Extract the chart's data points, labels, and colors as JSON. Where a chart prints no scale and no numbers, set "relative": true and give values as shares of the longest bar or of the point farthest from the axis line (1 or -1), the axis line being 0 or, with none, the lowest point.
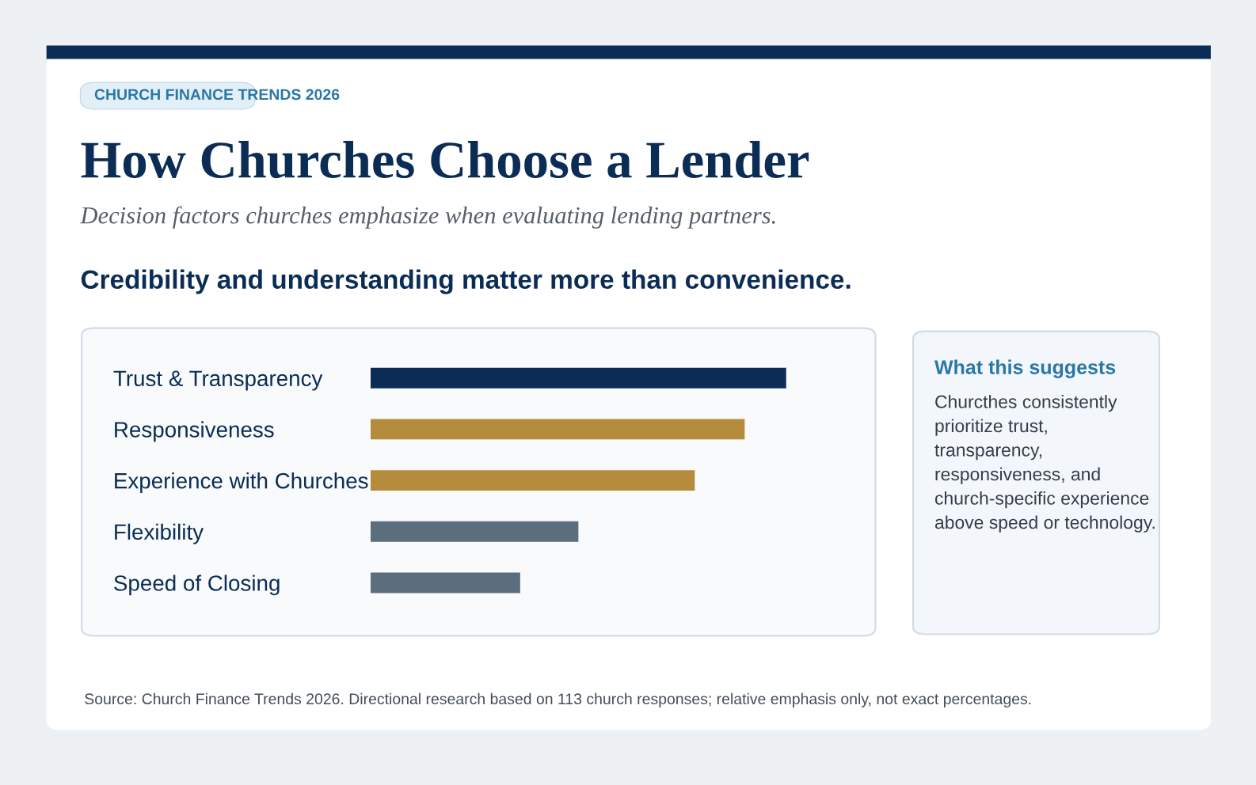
{
  "chart_data": {
    "type": "bar",
    "orientation": "horizontal",
    "relative": true,
    "title": "How Churches Choose a Lender",
    "subtitle": "Decision factors churches emphasize when evaluating lending partners.",
    "categories": [
      "Trust & Transparency",
      "Responsiveness",
      "Experience with Churches",
      "Flexibility",
      "Speed of Closing"
    ],
    "values": [
      1,
      0.9,
      0.78,
      0.5,
      0.36
    ],
    "colors": [
      "#0b2d55",
      "#b58c3c",
      "#b58c3c",
      "#5a6e7e",
      "#5a6e7e"
    ],
    "grid": false,
    "legend": false,
    "tick_labels": "y",
    "annotations": [
      "CHURCH FINANCE TRENDS 2026",
      "Credibility and understanding matter more than convenience.",
      "What this suggests",
      "Churcthes consistently\nprioritize trust,\ntransparency,\nresponsiveness, and\nchurch-specific experience\nabove speed or technology.",
      "Source: Church Finance Trends 2026. Directional research based on 113 church responses; relative emphasis only, not exact percentages."
    ]
  }
}
